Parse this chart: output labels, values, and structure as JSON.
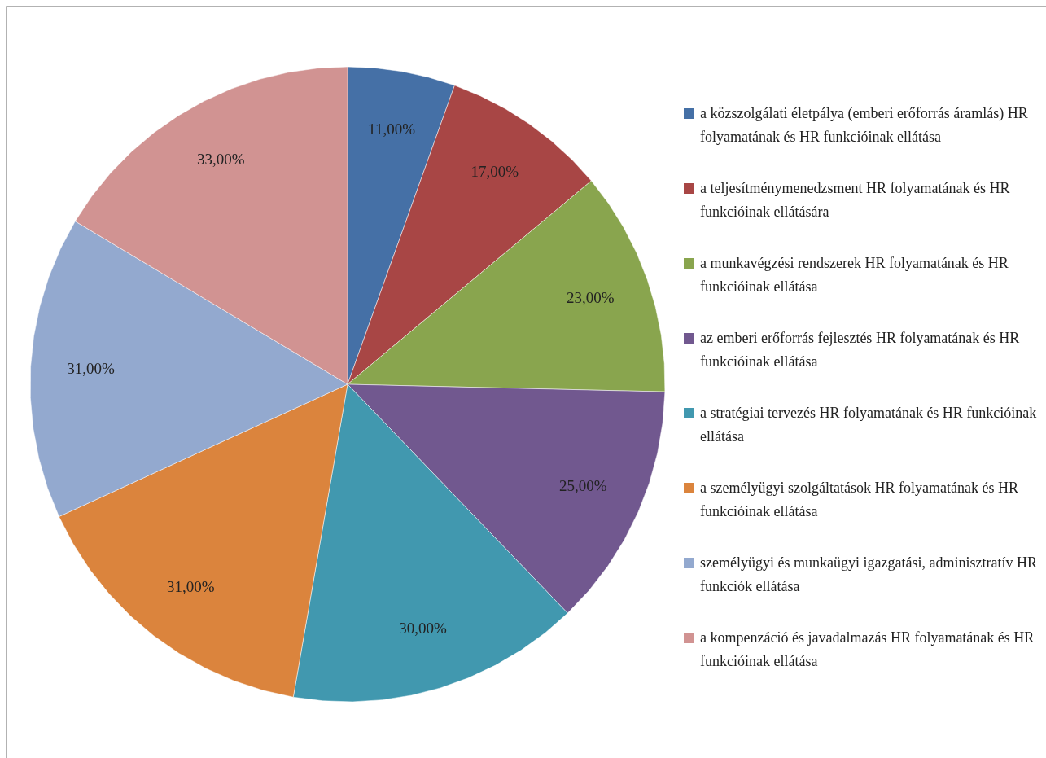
{
  "chart_data": {
    "type": "pie",
    "categories": [
      "a közszolgálati életpálya (emberi erőforrás áramlás) HR folyamatának és HR funkcióinak ellátása",
      "a teljesítménymenedzsment HR folyamatának és HR funkcióinak ellátására",
      "a munkavégzési rendszerek HR folyamatának és HR funkcióinak ellátása",
      "az emberi erőforrás fejlesztés HR folyamatának és HR funkcióinak ellátása",
      "a stratégiai tervezés HR folyamatának és HR funkcióinak ellátása",
      "a személyügyi szolgáltatások HR folyamatának és HR funkcióinak ellátása",
      "személyügyi és munkaügyi igazgatási, adminisztratív HR funkciók ellátása",
      "a kompenzáció és javadalmazás HR folyamatának és HR funkcióinak ellátása"
    ],
    "values": [
      11,
      17,
      23,
      25,
      30,
      31,
      31,
      33
    ],
    "value_labels": [
      "11,00%",
      "17,00%",
      "23,00%",
      "25,00%",
      "30,00%",
      "31,00%",
      "31,00%",
      "33,00%"
    ],
    "colors": [
      "#4570a6",
      "#a84645",
      "#89a54e",
      "#71588f",
      "#4198af",
      "#db843d",
      "#93a9cf",
      "#d19392"
    ],
    "legend": "right"
  }
}
